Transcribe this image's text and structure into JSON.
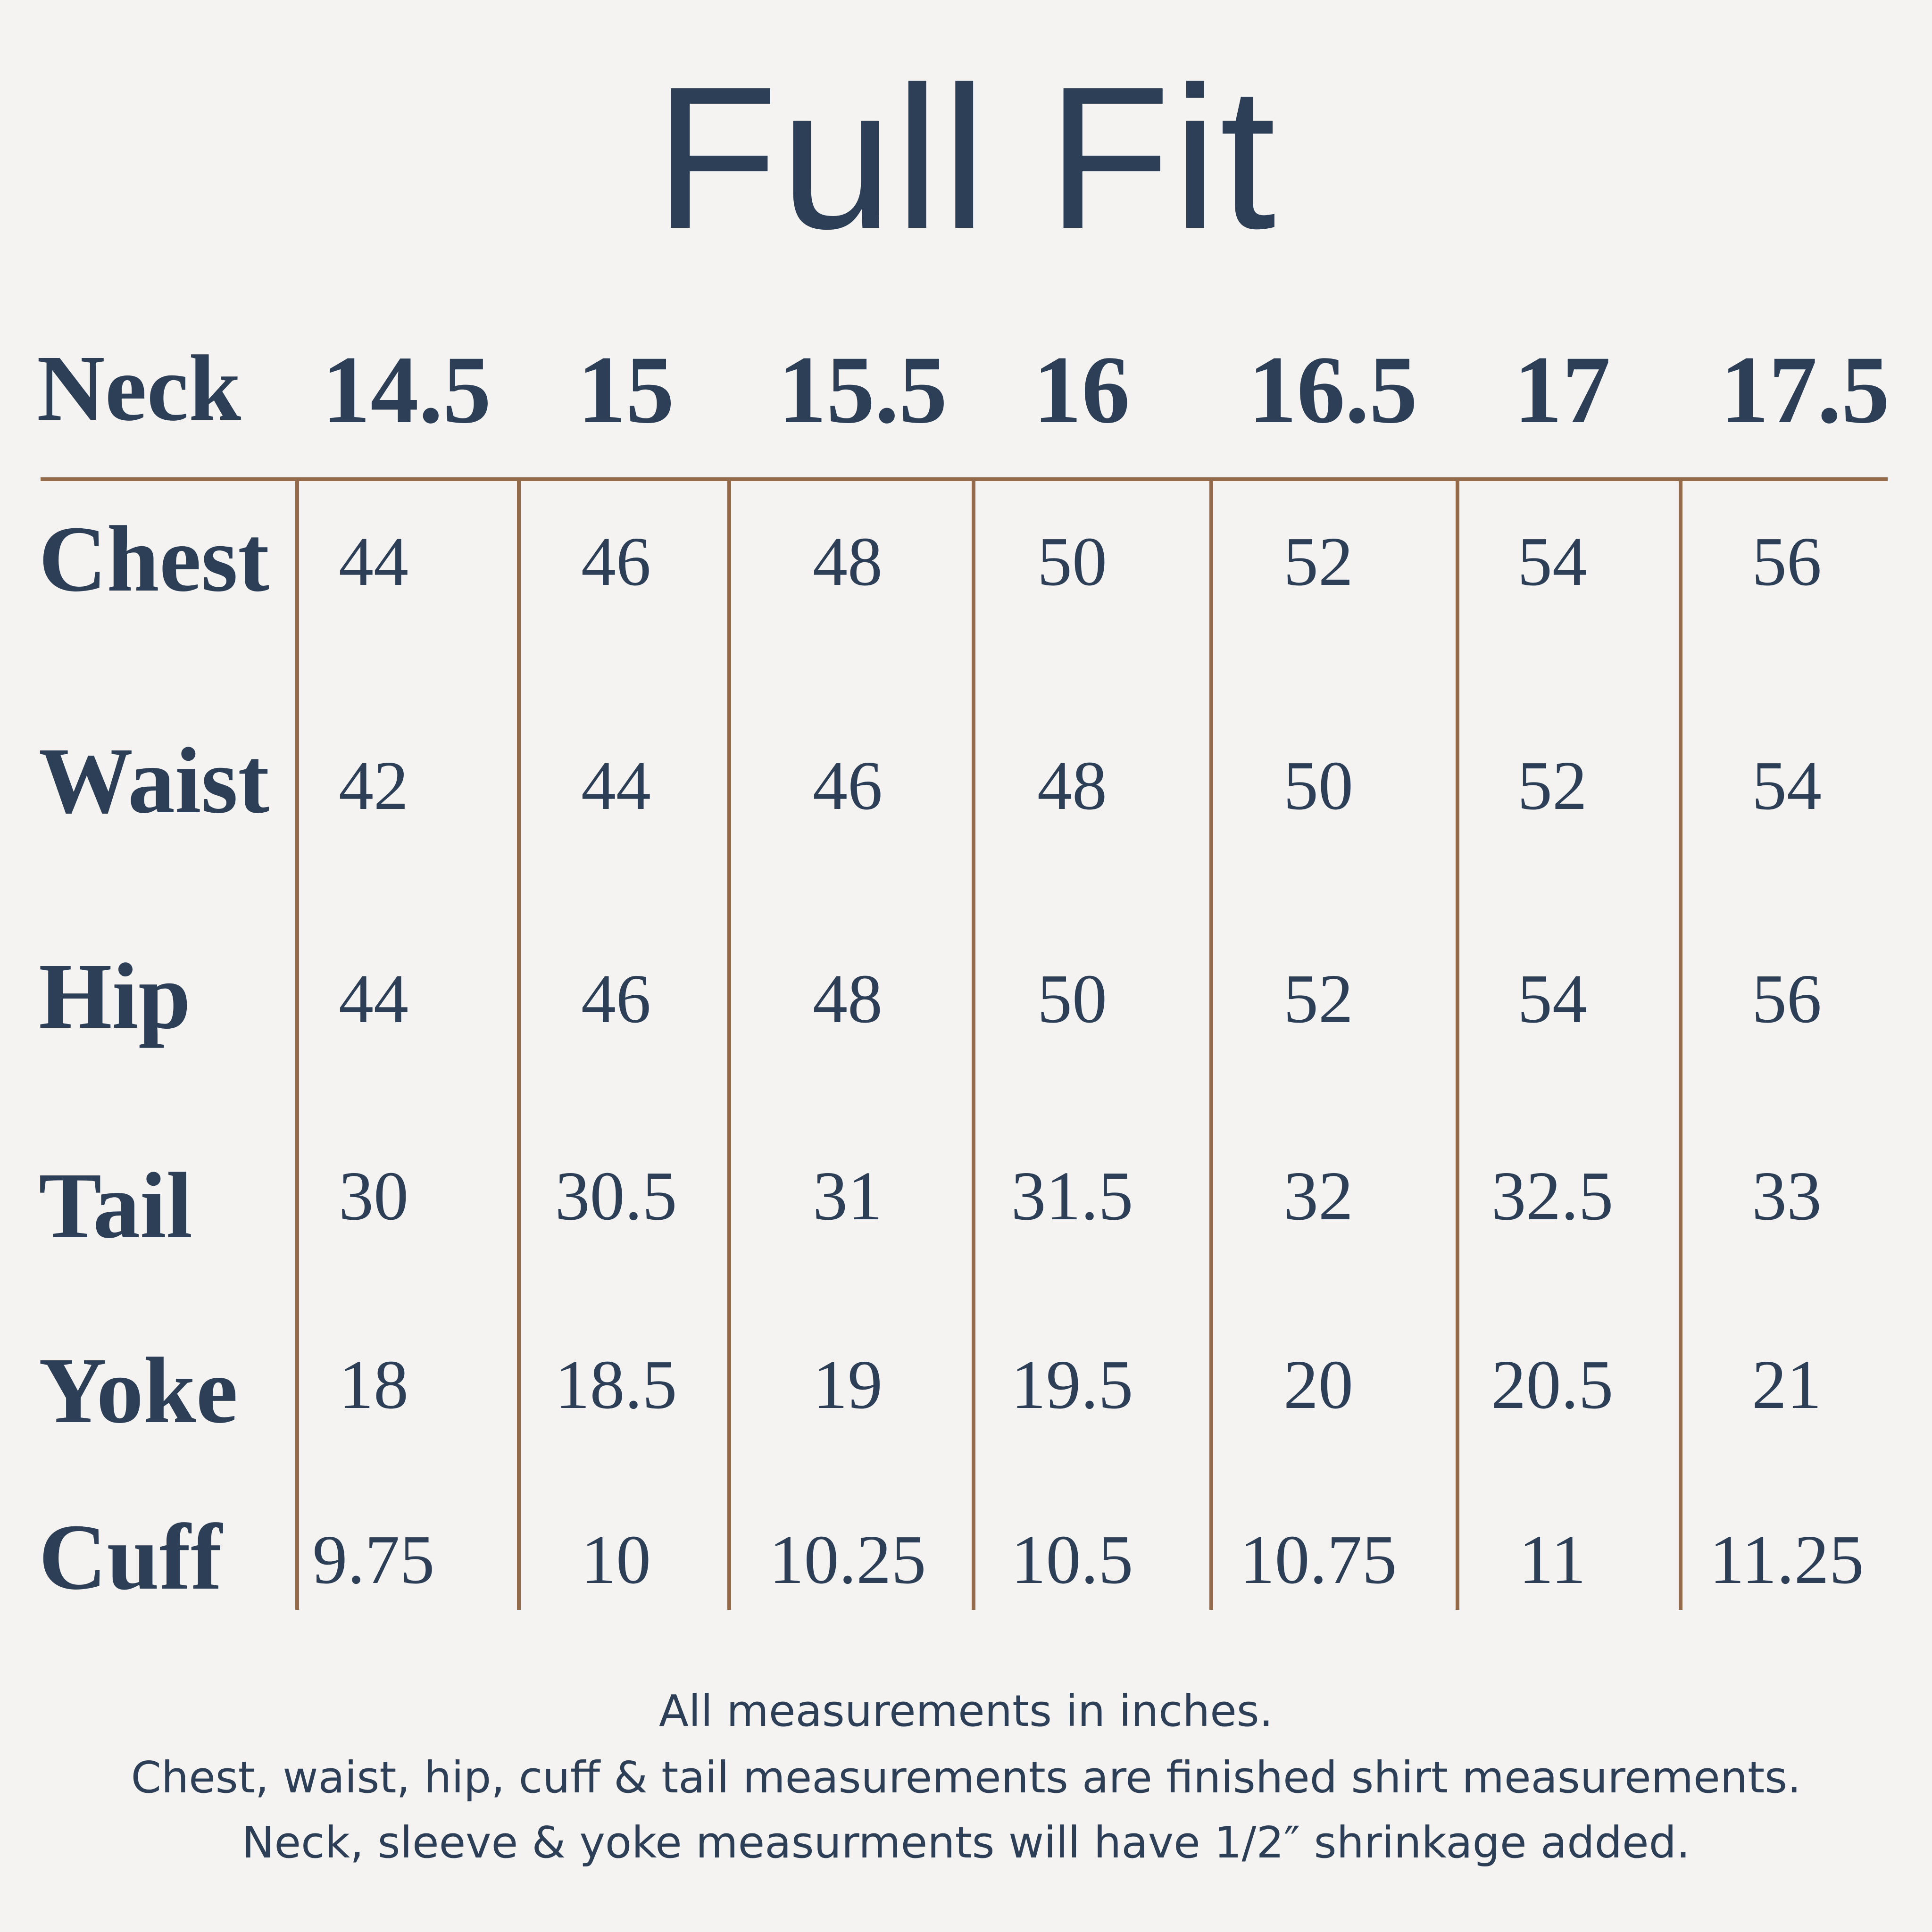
{
  "title": "Full Fit",
  "table": {
    "header_label": "Neck",
    "neck_sizes": [
      "14.5",
      "15",
      "15.5",
      "16",
      "16.5",
      "17",
      "17.5"
    ],
    "rows": [
      {
        "label": "Chest",
        "values": [
          "44",
          "46",
          "48",
          "50",
          "52",
          "54",
          "56"
        ]
      },
      {
        "label": "Waist",
        "values": [
          "42",
          "44",
          "46",
          "48",
          "50",
          "52",
          "54"
        ]
      },
      {
        "label": "Hip",
        "values": [
          "44",
          "46",
          "48",
          "50",
          "52",
          "54",
          "56"
        ]
      },
      {
        "label": "Tail",
        "values": [
          "30",
          "30.5",
          "31",
          "31.5",
          "32",
          "32.5",
          "33"
        ]
      },
      {
        "label": "Yoke",
        "values": [
          "18",
          "18.5",
          "19",
          "19.5",
          "20",
          "20.5",
          "21"
        ]
      },
      {
        "label": "Cuff",
        "values": [
          "9.75",
          "10",
          "10.25",
          "10.5",
          "10.75",
          "11",
          "11.25"
        ]
      }
    ]
  },
  "notes": [
    "All measurements in inches.",
    "Chest, waist, hip, cuff & tail measurements are finished shirt measurements.",
    "Neck, sleeve & yoke measurments will have 1/2″ shrinkage added."
  ],
  "colors": {
    "text": "#2c3f57",
    "rule": "#936b4b",
    "background": "#f4f3f1"
  }
}
